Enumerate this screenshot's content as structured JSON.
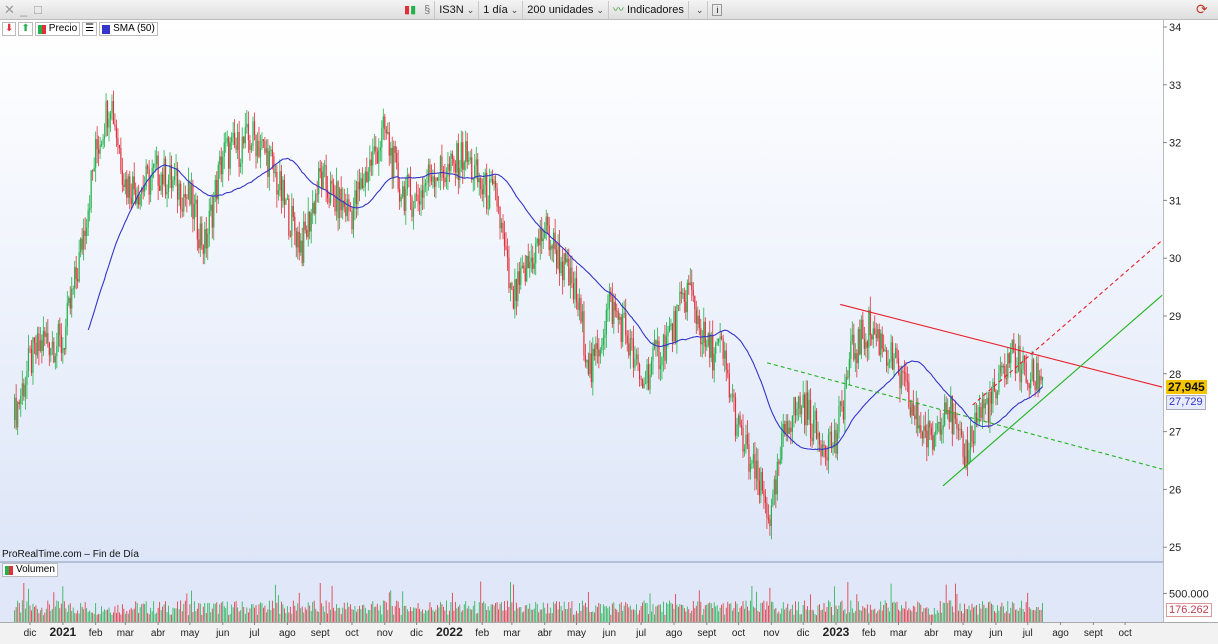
{
  "toolbar": {
    "window_controls": [
      "✕",
      "_",
      "□"
    ],
    "symbol": "IS3N",
    "timeframe": "1 día",
    "units": "200 unidades",
    "indicators": "Indicadores",
    "info": "i"
  },
  "legend": {
    "price": "Precio",
    "sma": "SMA (50)"
  },
  "source_label": "ProRealTime.com – Fin de Día",
  "volume_label": "Volumen",
  "colors": {
    "up": "#22b14c",
    "down": "#e0303a",
    "sma": "#3535c8",
    "trend_red": "#e8202a",
    "trend_green": "#22b422",
    "last_price_bg": "#f5c400"
  },
  "chart_data": {
    "type": "candlestick",
    "y_axis": {
      "range": [
        24.7,
        34.1
      ],
      "ticks": [
        "25",
        "26",
        "27",
        "28",
        "29",
        "30",
        "31",
        "32",
        "33",
        "34"
      ]
    },
    "x_axis": {
      "ticks": [
        {
          "d": "2020-12-01",
          "l": "dic"
        },
        {
          "d": "2021-01-01",
          "l": "2021",
          "bold": true
        },
        {
          "d": "2021-02-01",
          "l": "feb"
        },
        {
          "d": "2021-03-01",
          "l": "mar"
        },
        {
          "d": "2021-04-01",
          "l": "abr"
        },
        {
          "d": "2021-05-01",
          "l": "may"
        },
        {
          "d": "2021-06-01",
          "l": "jun"
        },
        {
          "d": "2021-07-01",
          "l": "jul"
        },
        {
          "d": "2021-08-01",
          "l": "ago"
        },
        {
          "d": "2021-09-01",
          "l": "sept"
        },
        {
          "d": "2021-10-01",
          "l": "oct"
        },
        {
          "d": "2021-11-01",
          "l": "nov"
        },
        {
          "d": "2021-12-01",
          "l": "dic"
        },
        {
          "d": "2022-01-01",
          "l": "2022",
          "bold": true
        },
        {
          "d": "2022-02-01",
          "l": "feb"
        },
        {
          "d": "2022-03-01",
          "l": "mar"
        },
        {
          "d": "2022-04-01",
          "l": "abr"
        },
        {
          "d": "2022-05-01",
          "l": "may"
        },
        {
          "d": "2022-06-01",
          "l": "jun"
        },
        {
          "d": "2022-07-01",
          "l": "jul"
        },
        {
          "d": "2022-08-01",
          "l": "ago"
        },
        {
          "d": "2022-09-01",
          "l": "sept"
        },
        {
          "d": "2022-10-01",
          "l": "oct"
        },
        {
          "d": "2022-11-01",
          "l": "nov"
        },
        {
          "d": "2022-12-01",
          "l": "dic"
        },
        {
          "d": "2023-01-01",
          "l": "2023",
          "bold": true
        },
        {
          "d": "2023-02-01",
          "l": "feb"
        },
        {
          "d": "2023-03-01",
          "l": "mar"
        },
        {
          "d": "2023-04-01",
          "l": "abr"
        },
        {
          "d": "2023-05-01",
          "l": "may"
        },
        {
          "d": "2023-06-01",
          "l": "jun"
        },
        {
          "d": "2023-07-01",
          "l": "jul"
        },
        {
          "d": "2023-08-01",
          "l": "ago"
        },
        {
          "d": "2023-09-01",
          "l": "sept"
        },
        {
          "d": "2023-10-01",
          "l": "oct"
        }
      ]
    },
    "close_series": [
      [
        "2020-11-15",
        27.2
      ],
      [
        "2020-12-01",
        28.2
      ],
      [
        "2020-12-15",
        28.6
      ],
      [
        "2021-01-01",
        28.5
      ],
      [
        "2021-01-15",
        29.8
      ],
      [
        "2021-02-01",
        31.8
      ],
      [
        "2021-02-15",
        32.8
      ],
      [
        "2021-03-01",
        31.3
      ],
      [
        "2021-03-15",
        31.2
      ],
      [
        "2021-04-01",
        31.5
      ],
      [
        "2021-04-15",
        31.3
      ],
      [
        "2021-05-01",
        31.0
      ],
      [
        "2021-05-15",
        30.2
      ],
      [
        "2021-06-01",
        31.8
      ],
      [
        "2021-06-15",
        31.9
      ],
      [
        "2021-07-01",
        32.1
      ],
      [
        "2021-07-15",
        31.7
      ],
      [
        "2021-08-01",
        30.8
      ],
      [
        "2021-08-15",
        30.2
      ],
      [
        "2021-09-01",
        31.4
      ],
      [
        "2021-09-15",
        31.0
      ],
      [
        "2021-10-01",
        30.8
      ],
      [
        "2021-10-15",
        31.5
      ],
      [
        "2021-11-01",
        32.2
      ],
      [
        "2021-11-15",
        31.2
      ],
      [
        "2021-12-01",
        31.0
      ],
      [
        "2021-12-15",
        31.5
      ],
      [
        "2022-01-01",
        31.5
      ],
      [
        "2022-01-15",
        31.8
      ],
      [
        "2022-02-01",
        31.2
      ],
      [
        "2022-02-15",
        31.0
      ],
      [
        "2022-03-01",
        29.2
      ],
      [
        "2022-03-15",
        29.8
      ],
      [
        "2022-04-01",
        30.5
      ],
      [
        "2022-04-15",
        30.0
      ],
      [
        "2022-05-01",
        29.3
      ],
      [
        "2022-05-15",
        28.0
      ],
      [
        "2022-06-01",
        29.2
      ],
      [
        "2022-06-15",
        28.8
      ],
      [
        "2022-07-01",
        27.8
      ],
      [
        "2022-07-15",
        28.3
      ],
      [
        "2022-08-01",
        28.8
      ],
      [
        "2022-08-15",
        29.5
      ],
      [
        "2022-09-01",
        28.4
      ],
      [
        "2022-09-15",
        28.4
      ],
      [
        "2022-10-01",
        27.0
      ],
      [
        "2022-10-15",
        26.3
      ],
      [
        "2022-11-01",
        25.5
      ],
      [
        "2022-11-15",
        27.2
      ],
      [
        "2022-12-01",
        27.5
      ],
      [
        "2022-12-15",
        26.9
      ],
      [
        "2023-01-01",
        26.8
      ],
      [
        "2023-01-15",
        28.3
      ],
      [
        "2023-02-01",
        28.8
      ],
      [
        "2023-02-15",
        28.5
      ],
      [
        "2023-03-01",
        28.0
      ],
      [
        "2023-03-15",
        27.3
      ],
      [
        "2023-04-01",
        26.8
      ],
      [
        "2023-04-15",
        27.6
      ],
      [
        "2023-05-01",
        26.5
      ],
      [
        "2023-05-15",
        27.3
      ],
      [
        "2023-06-01",
        27.6
      ],
      [
        "2023-06-15",
        28.4
      ],
      [
        "2023-07-01",
        27.9
      ],
      [
        "2023-07-15",
        27.945
      ]
    ],
    "sma_period": 50,
    "last_price": "27,945",
    "last_sma": "27,729",
    "trendlines": [
      {
        "color": "red",
        "style": "solid",
        "from": [
          "2023-01-05",
          29.2
        ],
        "to": [
          "2023-11-05",
          27.77
        ]
      },
      {
        "color": "green",
        "style": "solid",
        "from": [
          "2023-04-12",
          26.06
        ],
        "to": [
          "2023-11-05",
          29.36
        ]
      },
      {
        "color": "red",
        "style": "dashed",
        "from": [
          "2023-05-10",
          27.46
        ],
        "to": [
          "2023-11-05",
          30.31
        ]
      },
      {
        "color": "green",
        "style": "dashed",
        "from": [
          "2022-10-28",
          28.19
        ],
        "to": [
          "2023-11-05",
          26.35
        ]
      }
    ],
    "volume": {
      "range": [
        0,
        1050000
      ],
      "tick": "500.000",
      "last": "176.262"
    }
  }
}
